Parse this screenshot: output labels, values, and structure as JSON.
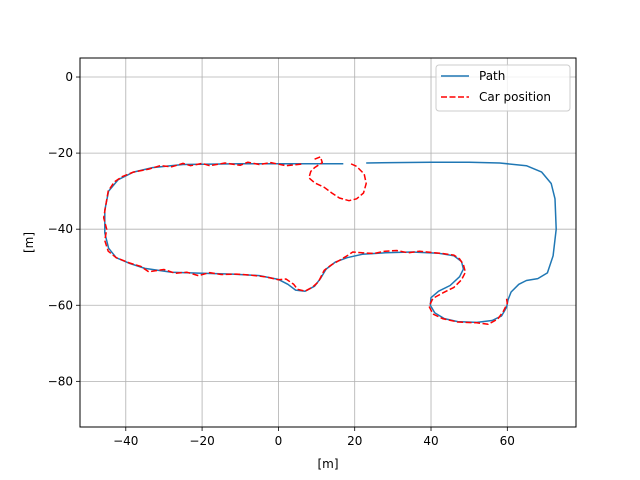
{
  "chart_data": {
    "type": "line",
    "title": "",
    "xlabel": "[m]",
    "ylabel": "[m]",
    "xlim": [
      -52,
      78
    ],
    "ylim": [
      -92,
      5
    ],
    "grid": true,
    "legend_position": "top-right",
    "x_ticks": [
      -40,
      -20,
      0,
      20,
      40,
      60
    ],
    "y_ticks": [
      0,
      -20,
      -40,
      -60,
      -80
    ],
    "x_tick_labels": [
      "−40",
      "−20",
      "0",
      "20",
      "40",
      "60"
    ],
    "y_tick_labels": [
      "0",
      "−20",
      "−40",
      "−60",
      "−80"
    ],
    "series": [
      {
        "name": "Path",
        "style": "solid",
        "color": "#1f77b4",
        "segments": [
          [
            [
              17,
              -22.8
            ],
            [
              5,
              -22.8
            ],
            [
              -10,
              -22.8
            ],
            [
              -25,
              -23.0
            ],
            [
              -33,
              -23.8
            ],
            [
              -38,
              -25.0
            ],
            [
              -42,
              -27
            ],
            [
              -44.5,
              -30
            ],
            [
              -45.5,
              -35
            ],
            [
              -45.5,
              -41
            ],
            [
              -44.5,
              -45
            ],
            [
              -42.5,
              -47.5
            ],
            [
              -39,
              -49
            ],
            [
              -35,
              -50.3
            ],
            [
              -28,
              -51.3
            ],
            [
              -20,
              -51.6
            ],
            [
              -12,
              -51.8
            ],
            [
              -5,
              -52.2
            ],
            [
              0,
              -53.2
            ],
            [
              2.5,
              -54.5
            ],
            [
              4.5,
              -56.0
            ],
            [
              7,
              -56.3
            ],
            [
              9.5,
              -55
            ],
            [
              11,
              -53
            ],
            [
              12.5,
              -50.5
            ],
            [
              15,
              -48.6
            ],
            [
              18,
              -47.5
            ],
            [
              22,
              -46.6
            ],
            [
              28,
              -46.2
            ],
            [
              35,
              -46.0
            ],
            [
              42,
              -46.3
            ],
            [
              46,
              -47.0
            ],
            [
              48,
              -48.5
            ],
            [
              48.5,
              -50.5
            ],
            [
              47.5,
              -52.5
            ],
            [
              45,
              -54.8
            ],
            [
              42,
              -56.3
            ],
            [
              40,
              -58
            ],
            [
              39.8,
              -60
            ],
            [
              41,
              -62
            ],
            [
              43.5,
              -63.5
            ],
            [
              47,
              -64.3
            ],
            [
              52,
              -64.5
            ],
            [
              56,
              -64.0
            ],
            [
              58.5,
              -62.8
            ],
            [
              59.8,
              -60.5
            ],
            [
              60.2,
              -58.5
            ],
            [
              61,
              -56.5
            ],
            [
              63,
              -54.5
            ],
            [
              65,
              -53.5
            ],
            [
              68,
              -53.0
            ],
            [
              70.5,
              -51.5
            ],
            [
              72,
              -47
            ],
            [
              72.8,
              -40
            ],
            [
              72.5,
              -32
            ],
            [
              71.5,
              -28
            ],
            [
              69,
              -25
            ],
            [
              65,
              -23.3
            ],
            [
              58,
              -22.6
            ],
            [
              50,
              -22.4
            ],
            [
              40,
              -22.4
            ],
            [
              30,
              -22.5
            ],
            [
              23,
              -22.6
            ]
          ]
        ]
      },
      {
        "name": "Car position",
        "style": "dashed",
        "color": "#ff0000",
        "segments": [
          [
            [
              9.5,
              -21.6
            ],
            [
              11.0,
              -21.0
            ],
            [
              11.5,
              -22.5
            ],
            [
              9.5,
              -23.8
            ],
            [
              8.5,
              -24.8
            ],
            [
              8,
              -26.5
            ],
            [
              9.5,
              -27.8
            ],
            [
              12,
              -29.0
            ],
            [
              14,
              -30.5
            ],
            [
              16,
              -31.8
            ],
            [
              18.5,
              -32.5
            ],
            [
              20.5,
              -32.0
            ],
            [
              22.3,
              -30.5
            ],
            [
              23,
              -28
            ],
            [
              22.5,
              -25.5
            ],
            [
              20.5,
              -23.5
            ],
            [
              19,
              -22.8
            ]
          ],
          [
            [
              6,
              -22.9
            ],
            [
              2,
              -23.3
            ],
            [
              -2,
              -22.5
            ],
            [
              -5,
              -23.0
            ],
            [
              -8,
              -22.4
            ],
            [
              -10,
              -23.2
            ],
            [
              -14,
              -22.6
            ],
            [
              -18,
              -23.3
            ],
            [
              -20,
              -22.7
            ],
            [
              -23,
              -23.3
            ],
            [
              -25,
              -22.7
            ],
            [
              -28,
              -23.6
            ],
            [
              -31,
              -23.3
            ],
            [
              -34,
              -24.2
            ],
            [
              -38,
              -25.0
            ],
            [
              -41,
              -26.2
            ],
            [
              -43,
              -27.6
            ],
            [
              -44.6,
              -30
            ],
            [
              -45.2,
              -33.5
            ],
            [
              -45.8,
              -37
            ],
            [
              -45,
              -40
            ],
            [
              -45.5,
              -43
            ],
            [
              -44.6,
              -45.8
            ],
            [
              -42.5,
              -47.5
            ],
            [
              -39,
              -48.9
            ],
            [
              -36,
              -49.8
            ],
            [
              -34,
              -51.2
            ],
            [
              -30,
              -50.6
            ],
            [
              -27,
              -51.6
            ],
            [
              -24,
              -51.3
            ],
            [
              -21,
              -52.2
            ],
            [
              -18,
              -51.4
            ],
            [
              -15,
              -51.9
            ],
            [
              -11,
              -51.8
            ],
            [
              -7,
              -52.1
            ],
            [
              -3,
              -52.6
            ],
            [
              0,
              -53.3
            ],
            [
              2,
              -53.1
            ],
            [
              4,
              -54.5
            ],
            [
              5,
              -55.8
            ],
            [
              7,
              -56.3
            ],
            [
              9,
              -55.2
            ],
            [
              10.5,
              -53.8
            ],
            [
              12,
              -50.8
            ],
            [
              14,
              -49.3
            ],
            [
              16,
              -48.2
            ],
            [
              18,
              -47.0
            ],
            [
              19.5,
              -46.0
            ],
            [
              22,
              -46.2
            ],
            [
              25,
              -46.4
            ],
            [
              28,
              -45.8
            ],
            [
              31,
              -45.6
            ],
            [
              34,
              -46.2
            ],
            [
              37,
              -45.8
            ],
            [
              40,
              -46.1
            ],
            [
              43,
              -46.4
            ],
            [
              46,
              -46.8
            ],
            [
              47.5,
              -47.8
            ],
            [
              48.5,
              -49.3
            ],
            [
              49,
              -51.3
            ],
            [
              48,
              -53.3
            ],
            [
              46,
              -55.3
            ],
            [
              43,
              -56.8
            ],
            [
              40.5,
              -58.2
            ],
            [
              39.5,
              -60.3
            ],
            [
              40.5,
              -62.3
            ],
            [
              43,
              -63.5
            ],
            [
              47,
              -64.4
            ],
            [
              52,
              -64.6
            ],
            [
              55,
              -65.0
            ],
            [
              57.5,
              -63.6
            ],
            [
              59,
              -61.5
            ],
            [
              60,
              -59.5
            ],
            [
              59.8,
              -58.3
            ]
          ]
        ]
      }
    ]
  }
}
